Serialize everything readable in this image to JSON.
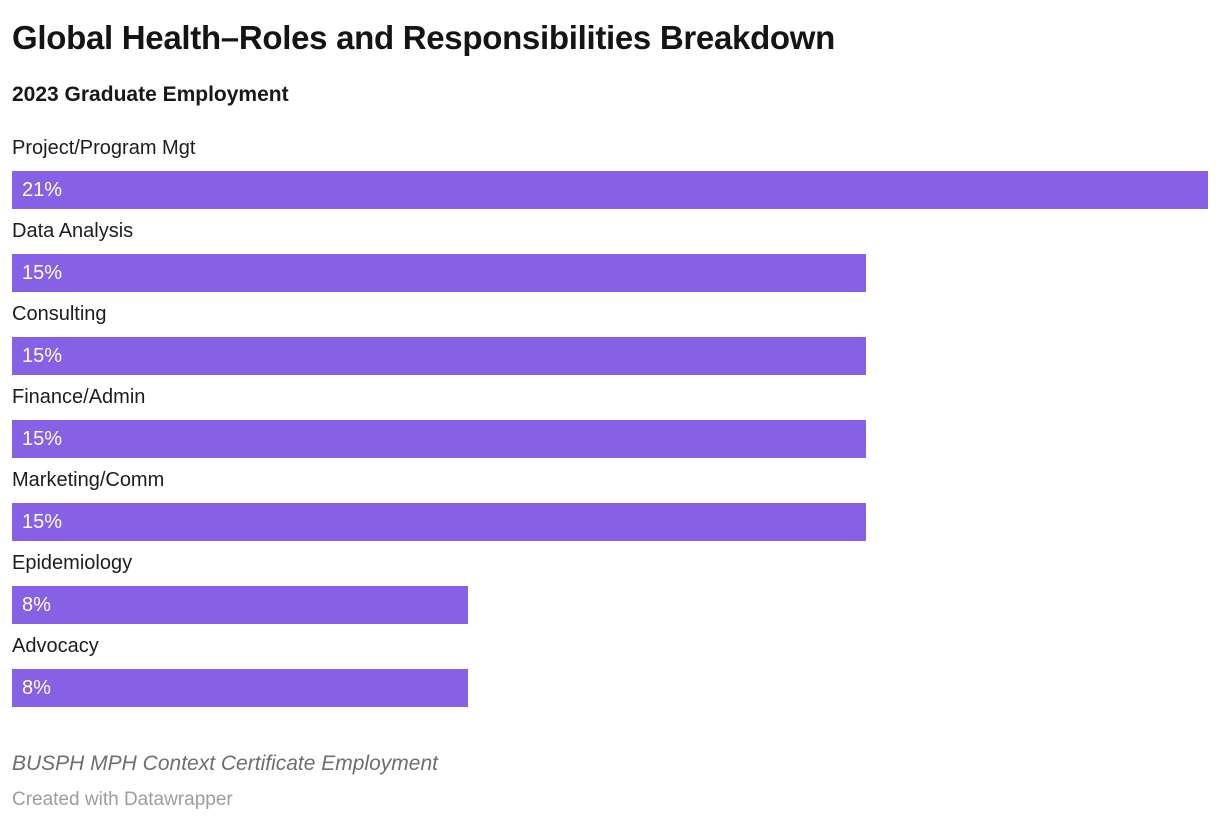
{
  "header": {
    "title": "Global Health–Roles and Responsibilities Breakdown",
    "subtitle": "2023 Graduate Employment"
  },
  "chart_data": {
    "type": "bar",
    "orientation": "horizontal",
    "title": "Global Health–Roles and Responsibilities Breakdown",
    "subtitle": "2023 Graduate Employment",
    "categories": [
      "Project/Program Mgt",
      "Data Analysis",
      "Consulting",
      "Finance/Admin",
      "Marketing/Comm",
      "Epidemiology",
      "Advocacy"
    ],
    "values": [
      21,
      15,
      15,
      15,
      15,
      8,
      8
    ],
    "value_labels": [
      "21%",
      "15%",
      "15%",
      "15%",
      "15%",
      "8%",
      "8%"
    ],
    "xlabel": "",
    "ylabel": "",
    "xlim": [
      0,
      21
    ],
    "grid": false,
    "legend": false,
    "bar_color": "#8761e5",
    "value_label_color": "#ffffff"
  },
  "footer": {
    "footnote": "BUSPH MPH Context Certificate Employment",
    "attribution": "Created with Datawrapper"
  },
  "colors": {
    "background": "#ffffff",
    "bar": "#8761e5",
    "title_text": "#141414",
    "category_text": "#1d1d1d",
    "footnote_text": "#6e6e6e",
    "attribution_text": "#9d9d9d"
  }
}
